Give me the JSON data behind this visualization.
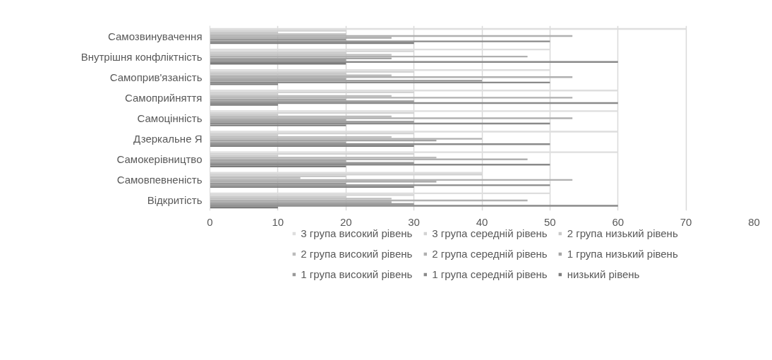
{
  "chart_data": {
    "type": "bar",
    "orientation": "horizontal",
    "categories": [
      "Самозвинувачення",
      "Внутрішня конфліктність",
      "Самоприв'язаність",
      "Самоприйняття",
      "Самоцінність",
      "Дзеркальне Я",
      "Самокерівництво",
      "Самовпевненість",
      "Відкритість"
    ],
    "series": [
      {
        "name": "3 група високий рівень",
        "color": "#dedede",
        "values": [
          70,
          50,
          50,
          60,
          60,
          60,
          60,
          40,
          50
        ]
      },
      {
        "name": "3 група середній рівень",
        "color": "#d3d3d3",
        "values": [
          20,
          30,
          30,
          30,
          30,
          30,
          30,
          40,
          30
        ]
      },
      {
        "name": "2 група низький рівень",
        "color": "#c8c8c8",
        "values": [
          10,
          20,
          20,
          10,
          10,
          10,
          10,
          20,
          20
        ]
      },
      {
        "name": "2 група високий рівень",
        "color": "#bcbcbc",
        "values": [
          20,
          26.7,
          26.7,
          26.7,
          26.7,
          26.7,
          33.3,
          13.3,
          26.7
        ]
      },
      {
        "name": "2 група середній рівень",
        "color": "#b0b0b0",
        "values": [
          53.3,
          46.7,
          53.3,
          53.3,
          53.3,
          40,
          46.7,
          53.3,
          46.7
        ]
      },
      {
        "name": "1 група низький рівень",
        "color": "#a4a4a4",
        "values": [
          26.7,
          26.7,
          20,
          20,
          20,
          33.3,
          20,
          33.3,
          26.7
        ]
      },
      {
        "name": "1 група високий рівень",
        "color": "#989898",
        "values": [
          20,
          20,
          40,
          30,
          30,
          20,
          30,
          20,
          30
        ]
      },
      {
        "name": "1 група середній рівень",
        "color": "#8a8a8a",
        "values": [
          50,
          60,
          50,
          60,
          50,
          50,
          50,
          50,
          60
        ]
      },
      {
        "name": "низький рівень",
        "color": "#7c7c7c",
        "values": [
          30,
          20,
          10,
          10,
          20,
          30,
          20,
          30,
          10
        ]
      }
    ],
    "xlim": [
      0,
      80
    ],
    "xticks": [
      0,
      10,
      20,
      30,
      40,
      50,
      60,
      70,
      80
    ],
    "grid": "x",
    "legend": "bottom"
  }
}
